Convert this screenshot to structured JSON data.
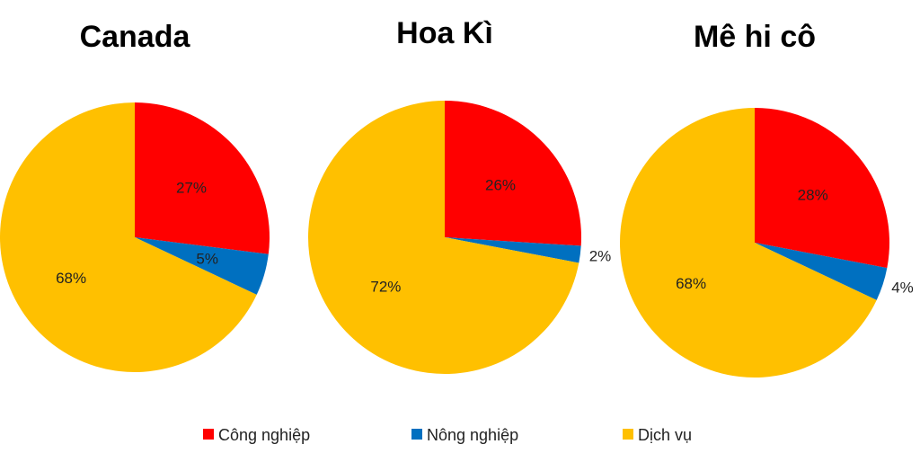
{
  "legend": [
    {
      "label": "Công nghiệp",
      "color": "#FF0000"
    },
    {
      "label": "Nông nghiệp",
      "color": "#0070C0"
    },
    {
      "label": "Dịch vụ",
      "color": "#FFC000"
    }
  ],
  "chart_data": [
    {
      "type": "pie",
      "title": "Canada",
      "categories": [
        "Công nghiệp",
        "Nông nghiệp",
        "Dịch vụ"
      ],
      "values": [
        27,
        5,
        68
      ],
      "labels": [
        "27%",
        "5%",
        "68%"
      ],
      "colors": [
        "#FF0000",
        "#0070C0",
        "#FFC000"
      ],
      "legend_position": "bottom"
    },
    {
      "type": "pie",
      "title": "Hoa Kì",
      "categories": [
        "Công nghiệp",
        "Nông nghiệp",
        "Dịch vụ"
      ],
      "values": [
        26,
        2,
        72
      ],
      "labels": [
        "26%",
        "2%",
        "72%"
      ],
      "colors": [
        "#FF0000",
        "#0070C0",
        "#FFC000"
      ],
      "legend_position": "bottom"
    },
    {
      "type": "pie",
      "title": "Mê hi cô",
      "categories": [
        "Công nghiệp",
        "Nông nghiệp",
        "Dịch vụ"
      ],
      "values": [
        28,
        4,
        68
      ],
      "labels": [
        "28%",
        "4%",
        "68%"
      ],
      "colors": [
        "#FF0000",
        "#0070C0",
        "#FFC000"
      ],
      "legend_position": "bottom"
    }
  ]
}
